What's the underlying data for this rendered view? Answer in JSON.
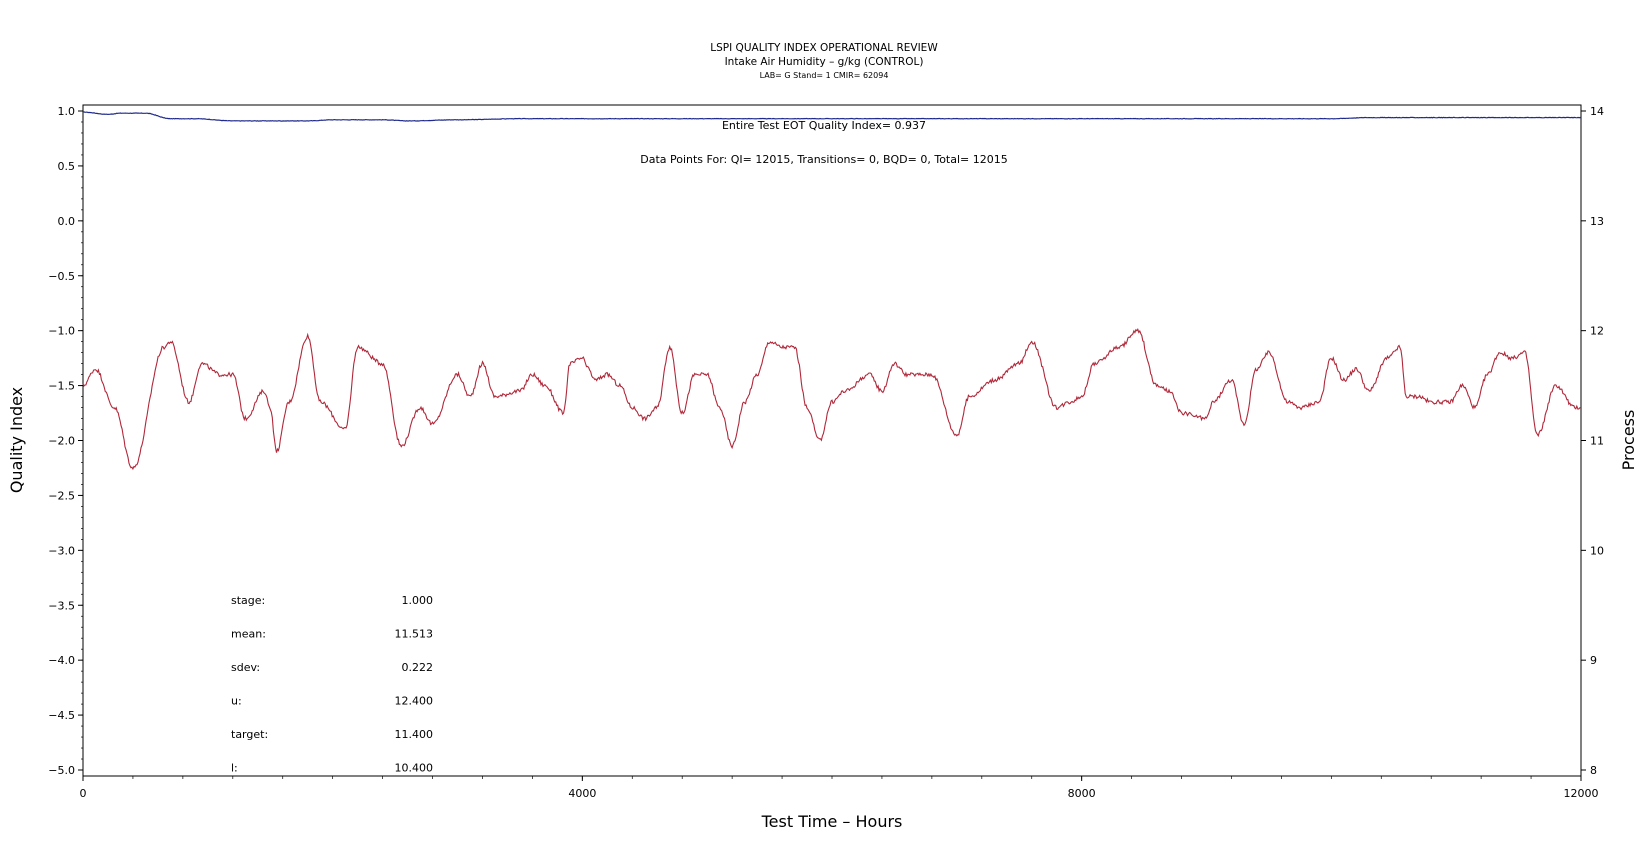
{
  "chart_data": {
    "type": "line",
    "title": "LSPI QUALITY INDEX OPERATIONAL REVIEW",
    "subtitle": "Intake Air Humidity – g/kg (CONTROL)",
    "subtitle2": "LAB= G Stand= 1 CMIR= 62094",
    "xlabel": "Test Time – Hours",
    "ylabel_left": "Quality Index",
    "ylabel_right": "Process",
    "xlim": [
      0,
      12000
    ],
    "ylim_left": [
      -5.0,
      1.0
    ],
    "ylim_right": [
      8,
      14
    ],
    "x_ticks": [
      "0",
      "4000",
      "8000",
      "12000"
    ],
    "x_tick_values": [
      0,
      4000,
      8000,
      12000
    ],
    "y_left_ticks": [
      "1.0",
      "0.5",
      "0.0",
      "−0.5",
      "−1.0",
      "−1.5",
      "−2.0",
      "−2.5",
      "−3.0",
      "−3.5",
      "−4.0",
      "−4.5",
      "−5.0"
    ],
    "y_left_tick_values": [
      1.0,
      0.5,
      0.0,
      -0.5,
      -1.0,
      -1.5,
      -2.0,
      -2.5,
      -3.0,
      -3.5,
      -4.0,
      -4.5,
      -5.0
    ],
    "y_right_ticks": [
      "14",
      "13",
      "12",
      "11",
      "10",
      "9",
      "8"
    ],
    "y_right_tick_values": [
      14,
      13,
      12,
      11,
      10,
      9,
      8
    ],
    "annotation_qi": "Entire Test EOT Quality Index=   0.937",
    "annotation_points": "Data Points For: QI= 12015, Transitions=     0, BQD=     0, Total= 12015",
    "series": [
      {
        "axis": "left",
        "color": "#1f2a8c",
        "x": [
          0,
          200,
          300,
          500,
          700,
          900,
          1200,
          1500,
          1800,
          2000,
          2400,
          2600,
          3000,
          3500,
          4000,
          5000,
          6000,
          7000,
          8000,
          9000,
          10000,
          10300,
          11000,
          12000
        ],
        "y": [
          0.99,
          0.97,
          0.98,
          0.98,
          0.93,
          0.93,
          0.91,
          0.91,
          0.91,
          0.92,
          0.92,
          0.91,
          0.92,
          0.93,
          0.93,
          0.93,
          0.93,
          0.93,
          0.93,
          0.93,
          0.93,
          0.94,
          0.94,
          0.94
        ]
      },
      {
        "axis": "right",
        "color": "#b0283a",
        "x": [
          0,
          100,
          250,
          400,
          650,
          700,
          850,
          950,
          1100,
          1200,
          1300,
          1450,
          1500,
          1550,
          1650,
          1800,
          1900,
          2100,
          2200,
          2400,
          2550,
          2700,
          2800,
          3000,
          3100,
          3200,
          3300,
          3500,
          3600,
          3700,
          3850,
          3900,
          4000,
          4050,
          4100,
          4200,
          4300,
          4400,
          4500,
          4600,
          4700,
          4800,
          4900,
          5000,
          5100,
          5200,
          5300,
          5400,
          5500,
          5600,
          5700,
          5800,
          5900,
          6000,
          6100,
          6300,
          6400,
          6500,
          6600,
          6800,
          7000,
          7100,
          7300,
          7500,
          7600,
          7800,
          7900,
          8000,
          8100,
          8300,
          8450,
          8600,
          8700,
          8800,
          9000,
          9050,
          9200,
          9300,
          9400,
          9500,
          9650,
          9750,
          9900,
          10000,
          10100,
          10200,
          10300,
          10450,
          10550,
          10600,
          10700,
          10800,
          10950,
          11050,
          11150,
          11250,
          11350,
          11450,
          11550,
          11650,
          11800,
          11950,
          12000
        ],
        "y": [
          11.5,
          11.65,
          11.3,
          10.75,
          11.85,
          11.9,
          11.35,
          11.7,
          11.6,
          11.6,
          11.2,
          11.45,
          11.3,
          10.9,
          11.35,
          11.95,
          11.35,
          11.1,
          11.85,
          11.7,
          10.95,
          11.3,
          11.15,
          11.6,
          11.4,
          11.7,
          11.4,
          11.45,
          11.6,
          11.5,
          11.25,
          11.7,
          11.75,
          11.65,
          11.55,
          11.6,
          11.5,
          11.3,
          11.2,
          11.3,
          11.85,
          11.25,
          11.6,
          11.6,
          11.3,
          10.95,
          11.35,
          11.6,
          11.9,
          11.85,
          11.85,
          11.3,
          11.0,
          11.35,
          11.45,
          11.6,
          11.45,
          11.7,
          11.6,
          11.6,
          11.05,
          11.4,
          11.55,
          11.7,
          11.9,
          11.3,
          11.35,
          11.4,
          11.7,
          11.85,
          12.0,
          11.5,
          11.45,
          11.25,
          11.2,
          11.35,
          11.55,
          11.15,
          11.65,
          11.8,
          11.35,
          11.3,
          11.35,
          11.75,
          11.55,
          11.65,
          11.45,
          11.75,
          11.85,
          11.4,
          11.4,
          11.35,
          11.35,
          11.5,
          11.3,
          11.6,
          11.8,
          11.75,
          11.8,
          11.05,
          11.5,
          11.3,
          11.3
        ]
      }
    ],
    "stats": [
      {
        "label": "stage:",
        "value": "1.000"
      },
      {
        "label": "mean:",
        "value": "11.513"
      },
      {
        "label": "sdev:",
        "value": "0.222"
      },
      {
        "label": "u:",
        "value": "12.400"
      },
      {
        "label": "target:",
        "value": "11.400"
      },
      {
        "label": "l:",
        "value": "10.400"
      }
    ]
  }
}
